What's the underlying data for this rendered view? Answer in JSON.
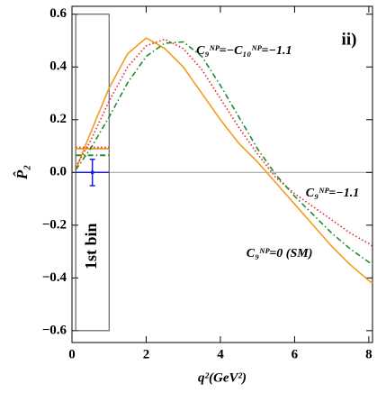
{
  "chart_data": {
    "type": "line",
    "annotation": "ii)",
    "xlabel": "q²(GeV²)",
    "ylabel": "P̂₂",
    "xlim": [
      0,
      8.1
    ],
    "ylim": [
      -0.645,
      0.63
    ],
    "xticks": [
      0,
      2,
      4,
      6,
      8
    ],
    "yticks": [
      {
        "value": -0.6,
        "label": "−0.6"
      },
      {
        "value": -0.4,
        "label": "−0.4"
      },
      {
        "value": -0.2,
        "label": "−0.2"
      },
      {
        "value": 0,
        "label": "0.0"
      },
      0.2,
      0.4,
      0.6
    ],
    "zero_line": true,
    "x": [
      0.1,
      0.5,
      1,
      1.5,
      2,
      2.5,
      3,
      3.5,
      4,
      4.5,
      5,
      5.5,
      6,
      6.5,
      7,
      7.5,
      8,
      8.1
    ],
    "series": [
      {
        "name": "C₉ᴺᴾ=0 (SM)",
        "color": "#f39c1e",
        "style": "solid",
        "bin_value": 0.09,
        "values": [
          0.01,
          0.15,
          0.32,
          0.45,
          0.51,
          0.47,
          0.4,
          0.3,
          0.2,
          0.11,
          0.04,
          -0.04,
          -0.12,
          -0.2,
          -0.28,
          -0.35,
          -0.41,
          -0.42
        ]
      },
      {
        "name": "C₉ᴺᴾ=−1.1",
        "color": "#e8202a",
        "style": "dotted",
        "bin_value": 0.095,
        "values": [
          0.02,
          0.12,
          0.27,
          0.4,
          0.48,
          0.505,
          0.47,
          0.39,
          0.28,
          0.17,
          0.07,
          -0.02,
          -0.08,
          -0.13,
          -0.18,
          -0.23,
          -0.27,
          -0.28
        ]
      },
      {
        "name": "C₉ᴺᴾ=−C₁₀ᴺᴾ=−1.1",
        "color": "#1f8a2a",
        "style": "dashdot",
        "bin_value": 0.065,
        "values": [
          0.01,
          0.09,
          0.21,
          0.34,
          0.44,
          0.49,
          0.495,
          0.44,
          0.33,
          0.21,
          0.09,
          -0.01,
          -0.09,
          -0.16,
          -0.23,
          -0.29,
          -0.34,
          -0.35
        ]
      }
    ],
    "bin": {
      "label": "1st bin",
      "x": [
        0.1,
        1
      ],
      "y": [
        -0.6,
        0.6
      ]
    },
    "measurement": {
      "x": 0.55,
      "value": 0,
      "error": 0.05,
      "color": "#1c1cd0"
    }
  }
}
